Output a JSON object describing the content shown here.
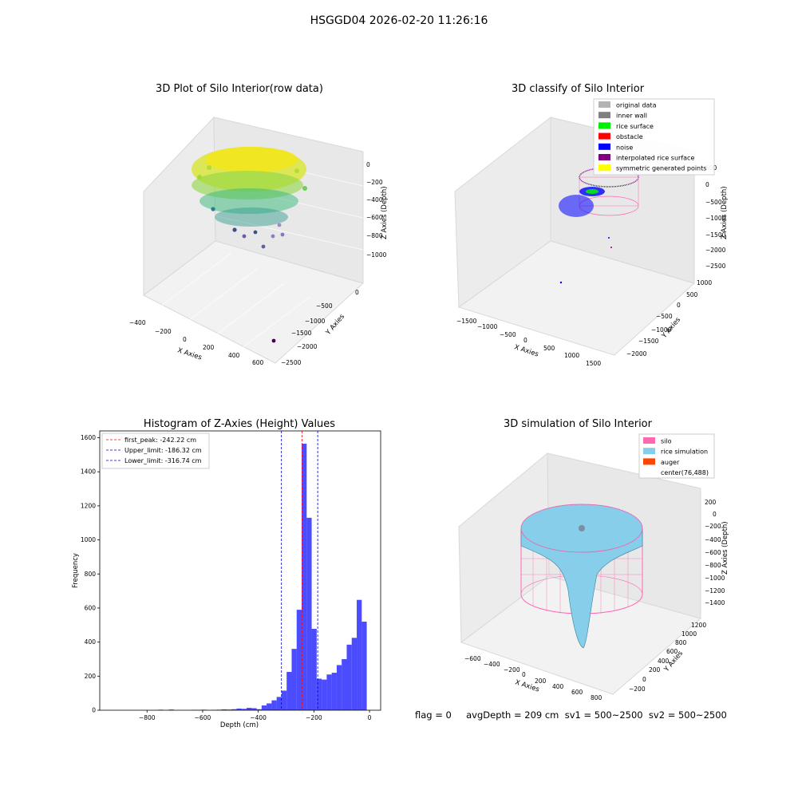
{
  "suptitle": "HSGGD04 2026-02-20 11:26:16",
  "footer": "flag = 0     avgDepth = 209 cm  sv1 = 500~2500  sv2 = 500~2500",
  "colors": {
    "background": "#ffffff",
    "pane": "#f2f2f2",
    "histogram_bar": "#0000ff",
    "first_peak_line": "#ff0000",
    "limit_line": "#0000cc",
    "silo_wire": "#ff69b4",
    "rice_surface": "#87ceeb",
    "auger": "#ff4500"
  },
  "chart_data": [
    {
      "type": "scatter",
      "subtype": "3d",
      "title": "3D Plot of Silo Interior(row data)",
      "xlabel": "X Axies",
      "ylabel": "Y Axies",
      "zlabel": "Z Axies (Depth)",
      "x_ticks": [
        "-400",
        "-200",
        "0",
        "200",
        "400",
        "600"
      ],
      "y_ticks": [
        "0",
        "-500",
        "-1000",
        "-1500",
        "-2000",
        "-2500"
      ],
      "z_ticks": [
        "0",
        "-200",
        "-400",
        "-600",
        "-800",
        "-1000"
      ],
      "colormap": "viridis",
      "description_values": {
        "z_range": [
          -1000,
          0
        ]
      }
    },
    {
      "type": "scatter",
      "subtype": "3d",
      "title": "3D classify of Silo Interior",
      "xlabel": "X Axies",
      "ylabel": "Y Axies",
      "zlabel": "Z Axies (Depth)",
      "x_ticks": [
        "-1500",
        "-1000",
        "-500",
        "0",
        "500",
        "1000",
        "1500"
      ],
      "y_ticks": [
        "1000",
        "500",
        "0",
        "-500",
        "-1000",
        "-1500",
        "-2000"
      ],
      "z_ticks": [
        "500",
        "0",
        "-500",
        "-1000",
        "-1500",
        "-2000",
        "-2500"
      ],
      "legend_position": "top-right",
      "legend": [
        {
          "label": "original data",
          "color": "#b3b3b3"
        },
        {
          "label": "inner wall",
          "color": "#808080"
        },
        {
          "label": "rice surface",
          "color": "#00ee00"
        },
        {
          "label": "obstacle",
          "color": "#ff0000"
        },
        {
          "label": "noise",
          "color": "#0000ff"
        },
        {
          "label": "interpolated rice surface",
          "color": "#800080"
        },
        {
          "label": "symmetric generated points",
          "color": "#ffff00"
        }
      ]
    },
    {
      "type": "bar",
      "subtype": "histogram",
      "title": "Histogram of Z-Axies (Height) Values",
      "xlabel": "Depth (cm)",
      "ylabel": "Frequency",
      "xlim": [
        -970,
        40
      ],
      "ylim": [
        0,
        1640
      ],
      "x_ticks": [
        -800,
        -600,
        -400,
        -200,
        0
      ],
      "x_tick_labels": [
        "−800",
        "−600",
        "−400",
        "−200",
        "0"
      ],
      "y_ticks": [
        0,
        200,
        400,
        600,
        800,
        1000,
        1200,
        1400,
        1600
      ],
      "bin_width": 18,
      "bins": [
        {
          "x": -760,
          "v": 3
        },
        {
          "x": -722,
          "v": 4
        },
        {
          "x": -640,
          "v": 2
        },
        {
          "x": -622,
          "v": 2
        },
        {
          "x": -604,
          "v": 3
        },
        {
          "x": -568,
          "v": 2
        },
        {
          "x": -550,
          "v": 3
        },
        {
          "x": -532,
          "v": 5
        },
        {
          "x": -514,
          "v": 4
        },
        {
          "x": -496,
          "v": 6
        },
        {
          "x": -478,
          "v": 10
        },
        {
          "x": -460,
          "v": 8
        },
        {
          "x": -442,
          "v": 14
        },
        {
          "x": -424,
          "v": 12
        },
        {
          "x": -406,
          "v": 6
        },
        {
          "x": -388,
          "v": 28
        },
        {
          "x": -370,
          "v": 40
        },
        {
          "x": -352,
          "v": 58
        },
        {
          "x": -334,
          "v": 78
        },
        {
          "x": -316,
          "v": 115
        },
        {
          "x": -298,
          "v": 225
        },
        {
          "x": -280,
          "v": 360
        },
        {
          "x": -262,
          "v": 590
        },
        {
          "x": -244,
          "v": 1565
        },
        {
          "x": -226,
          "v": 1130
        },
        {
          "x": -208,
          "v": 478
        },
        {
          "x": -190,
          "v": 185
        },
        {
          "x": -172,
          "v": 180
        },
        {
          "x": -154,
          "v": 210
        },
        {
          "x": -136,
          "v": 220
        },
        {
          "x": -118,
          "v": 265
        },
        {
          "x": -100,
          "v": 300
        },
        {
          "x": -82,
          "v": 385
        },
        {
          "x": -64,
          "v": 425
        },
        {
          "x": -46,
          "v": 648
        },
        {
          "x": -28,
          "v": 520
        }
      ],
      "vlines": [
        {
          "label": "first_peak: -242.22 cm",
          "x": -242.22,
          "color": "#ff0000"
        },
        {
          "label": "Upper_limit: -186.32 cm",
          "x": -186.32,
          "color": "#0000cc"
        },
        {
          "label": "Lower_limit: -316.74 cm",
          "x": -316.74,
          "color": "#0000cc"
        }
      ],
      "legend_position": "top-left"
    },
    {
      "type": "area",
      "subtype": "3d-surface",
      "title": "3D simulation of Silo Interior",
      "xlabel": "X Axies",
      "ylabel": "Y Axies",
      "zlabel": "Z Axies (Depth)",
      "x_ticks": [
        "-600",
        "-400",
        "-200",
        "0",
        "200",
        "400",
        "600",
        "800"
      ],
      "y_ticks": [
        "1200",
        "1000",
        "800",
        "600",
        "400",
        "200",
        "0",
        "-200"
      ],
      "z_ticks": [
        "200",
        "0",
        "-200",
        "-400",
        "-600",
        "-800",
        "-1000",
        "-1200",
        "-1400"
      ],
      "legend_position": "top-right",
      "legend": [
        {
          "label": "silo",
          "color": "#ff69b4"
        },
        {
          "label": "rice simulation",
          "color": "#87ceeb"
        },
        {
          "label": "auger",
          "color": "#ff4500"
        },
        {
          "label": "center(76,488)",
          "color": "#ffffff"
        }
      ]
    }
  ]
}
